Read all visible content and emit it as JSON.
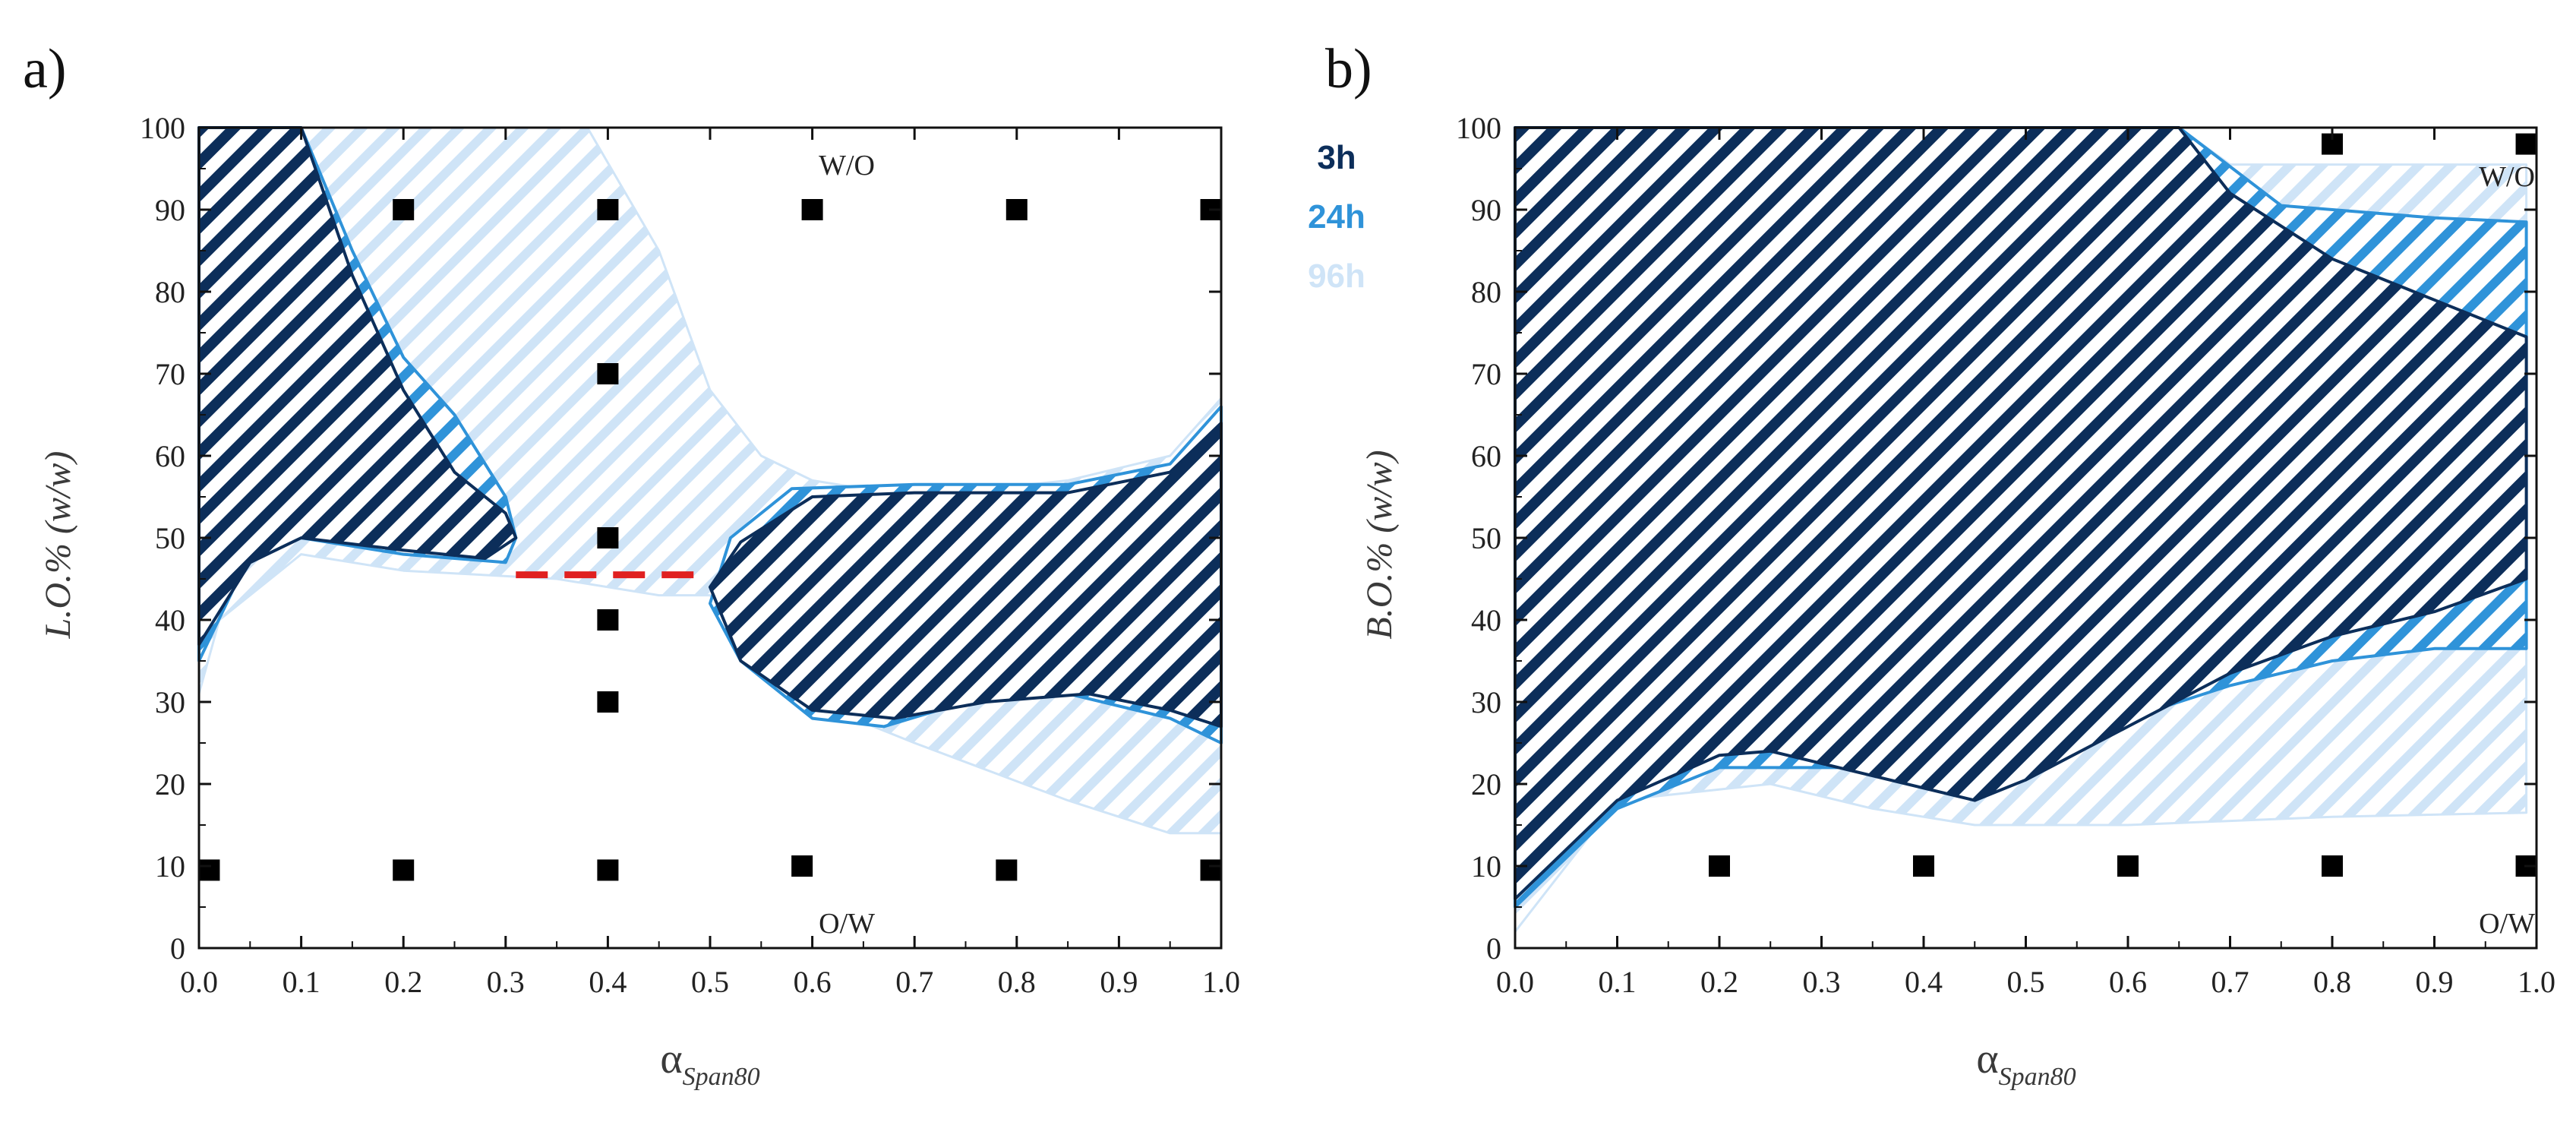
{
  "figure": {
    "colors": {
      "h3": "#0c2e5a",
      "h24": "#2f93d9",
      "h96": "#cfe4f7",
      "marker": "#000000",
      "dash": "#e02020"
    },
    "legend": [
      {
        "label": "3h",
        "color": "#0c2e5a"
      },
      {
        "label": "24h",
        "color": "#2f93d9"
      },
      {
        "label": "96h",
        "color": "#cfe4f7"
      }
    ]
  },
  "chart_data": [
    {
      "panel_label": "a)",
      "type": "scatter",
      "title": "",
      "xlabel": "α",
      "xlabel_sub": "Span80",
      "ylabel": "L.O.% (w/w)",
      "xlim": [
        0,
        1
      ],
      "ylim": [
        0,
        100
      ],
      "xticks": [
        "0.0",
        "0.1",
        "0.2",
        "0.3",
        "0.4",
        "0.5",
        "0.6",
        "0.7",
        "0.8",
        "0.9",
        "1.0"
      ],
      "yticks": [
        "0",
        "10",
        "20",
        "30",
        "40",
        "50",
        "60",
        "70",
        "80",
        "90",
        "100"
      ],
      "region_top": "W/O",
      "region_bottom": "O/W",
      "points": [
        [
          0.01,
          9.5
        ],
        [
          0.2,
          9.5
        ],
        [
          0.4,
          9.5
        ],
        [
          0.59,
          10
        ],
        [
          0.79,
          9.5
        ],
        [
          0.99,
          9.5
        ],
        [
          0.2,
          90
        ],
        [
          0.4,
          90
        ],
        [
          0.6,
          90
        ],
        [
          0.8,
          90
        ],
        [
          0.99,
          90
        ],
        [
          0.4,
          70
        ],
        [
          0.4,
          50
        ],
        [
          0.4,
          40
        ],
        [
          0.4,
          30
        ]
      ],
      "dashed_line": {
        "x": [
          0.31,
          0.5
        ],
        "y": 45.5
      },
      "regions": [
        {
          "name": "96h",
          "polygons": [
            [
              [
                0,
                100
              ],
              [
                0.38,
                100
              ],
              [
                0.45,
                85
              ],
              [
                0.5,
                68
              ],
              [
                0.55,
                60
              ],
              [
                0.6,
                57
              ],
              [
                0.7,
                55
              ],
              [
                0.85,
                57
              ],
              [
                0.95,
                60
              ],
              [
                1,
                67
              ],
              [
                1,
                14
              ],
              [
                0.95,
                14
              ],
              [
                0.85,
                18
              ],
              [
                0.7,
                25
              ],
              [
                0.6,
                30
              ],
              [
                0.5,
                43
              ],
              [
                0.45,
                43
              ],
              [
                0.35,
                45
              ],
              [
                0.2,
                46
              ],
              [
                0.1,
                48
              ],
              [
                0.02,
                40
              ],
              [
                0,
                31
              ]
            ]
          ]
        },
        {
          "name": "24h",
          "polygons": [
            [
              [
                0,
                100
              ],
              [
                0.1,
                100
              ],
              [
                0.15,
                85
              ],
              [
                0.2,
                72
              ],
              [
                0.25,
                65
              ],
              [
                0.3,
                55
              ],
              [
                0.31,
                50
              ],
              [
                0.3,
                47
              ],
              [
                0.2,
                48
              ],
              [
                0.1,
                50
              ],
              [
                0.05,
                48
              ],
              [
                0,
                35
              ]
            ],
            [
              [
                0.5,
                42
              ],
              [
                0.52,
                50
              ],
              [
                0.58,
                56
              ],
              [
                0.7,
                56.5
              ],
              [
                0.85,
                56.5
              ],
              [
                0.95,
                59
              ],
              [
                1,
                66
              ],
              [
                1,
                25
              ],
              [
                0.95,
                28
              ],
              [
                0.85,
                31
              ],
              [
                0.75,
                30
              ],
              [
                0.67,
                27
              ],
              [
                0.6,
                28
              ],
              [
                0.53,
                35
              ]
            ]
          ]
        },
        {
          "name": "3h",
          "polygons": [
            [
              [
                0,
                100
              ],
              [
                0.1,
                100
              ],
              [
                0.15,
                82
              ],
              [
                0.2,
                68
              ],
              [
                0.25,
                58
              ],
              [
                0.3,
                53
              ],
              [
                0.31,
                50
              ],
              [
                0.28,
                47.5
              ],
              [
                0.2,
                48.5
              ],
              [
                0.1,
                50
              ],
              [
                0.05,
                47
              ],
              [
                0,
                37
              ]
            ],
            [
              [
                0.5,
                44
              ],
              [
                0.53,
                49.5
              ],
              [
                0.6,
                55
              ],
              [
                0.7,
                55.5
              ],
              [
                0.85,
                55.5
              ],
              [
                0.95,
                58
              ],
              [
                1,
                64
              ],
              [
                1,
                27
              ],
              [
                0.95,
                29
              ],
              [
                0.87,
                31
              ],
              [
                0.77,
                30
              ],
              [
                0.68,
                28
              ],
              [
                0.6,
                29
              ],
              [
                0.53,
                35
              ]
            ]
          ]
        }
      ]
    },
    {
      "panel_label": "b)",
      "type": "scatter",
      "title": "",
      "xlabel": "α",
      "xlabel_sub": "Span80",
      "ylabel": "B.O.% (w/w)",
      "xlim": [
        0,
        1
      ],
      "ylim": [
        0,
        100
      ],
      "xticks": [
        "0.0",
        "0.1",
        "0.2",
        "0.3",
        "0.4",
        "0.5",
        "0.6",
        "0.7",
        "0.8",
        "0.9",
        "1.0"
      ],
      "yticks": [
        "0",
        "10",
        "20",
        "30",
        "40",
        "50",
        "60",
        "70",
        "80",
        "90",
        "100"
      ],
      "region_top": "W/O",
      "region_bottom": "O/W",
      "points": [
        [
          0.2,
          10
        ],
        [
          0.4,
          10
        ],
        [
          0.6,
          10
        ],
        [
          0.8,
          10
        ],
        [
          0.99,
          10
        ],
        [
          0.8,
          98
        ],
        [
          0.99,
          98
        ]
      ],
      "dashed_line": null,
      "regions": [
        {
          "name": "96h",
          "polygons": [
            [
              [
                0,
                100
              ],
              [
                0.65,
                100
              ],
              [
                0.7,
                95.5
              ],
              [
                0.99,
                95.5
              ],
              [
                0.99,
                16.5
              ],
              [
                0.8,
                16
              ],
              [
                0.6,
                15
              ],
              [
                0.45,
                15
              ],
              [
                0.35,
                17
              ],
              [
                0.25,
                20
              ],
              [
                0.1,
                18
              ],
              [
                0,
                2
              ]
            ]
          ]
        },
        {
          "name": "24h",
          "polygons": [
            [
              [
                0,
                100
              ],
              [
                0.65,
                100
              ],
              [
                0.75,
                90.5
              ],
              [
                0.9,
                89
              ],
              [
                0.99,
                88.5
              ],
              [
                0.99,
                36.5
              ],
              [
                0.9,
                36.5
              ],
              [
                0.8,
                35
              ],
              [
                0.7,
                32
              ],
              [
                0.6,
                28
              ],
              [
                0.45,
                21
              ],
              [
                0.35,
                22
              ],
              [
                0.2,
                22
              ],
              [
                0.1,
                17
              ],
              [
                0,
                5
              ]
            ]
          ]
        },
        {
          "name": "3h",
          "polygons": [
            [
              [
                0,
                100
              ],
              [
                0.65,
                100
              ],
              [
                0.7,
                92
              ],
              [
                0.8,
                84
              ],
              [
                0.9,
                79
              ],
              [
                0.99,
                74.5
              ],
              [
                0.99,
                45
              ],
              [
                0.9,
                41
              ],
              [
                0.8,
                38
              ],
              [
                0.7,
                33.5
              ],
              [
                0.6,
                27
              ],
              [
                0.5,
                20.5
              ],
              [
                0.45,
                18
              ],
              [
                0.35,
                21
              ],
              [
                0.25,
                24
              ],
              [
                0.2,
                23.5
              ],
              [
                0.1,
                18
              ],
              [
                0,
                6
              ]
            ]
          ]
        }
      ]
    }
  ]
}
